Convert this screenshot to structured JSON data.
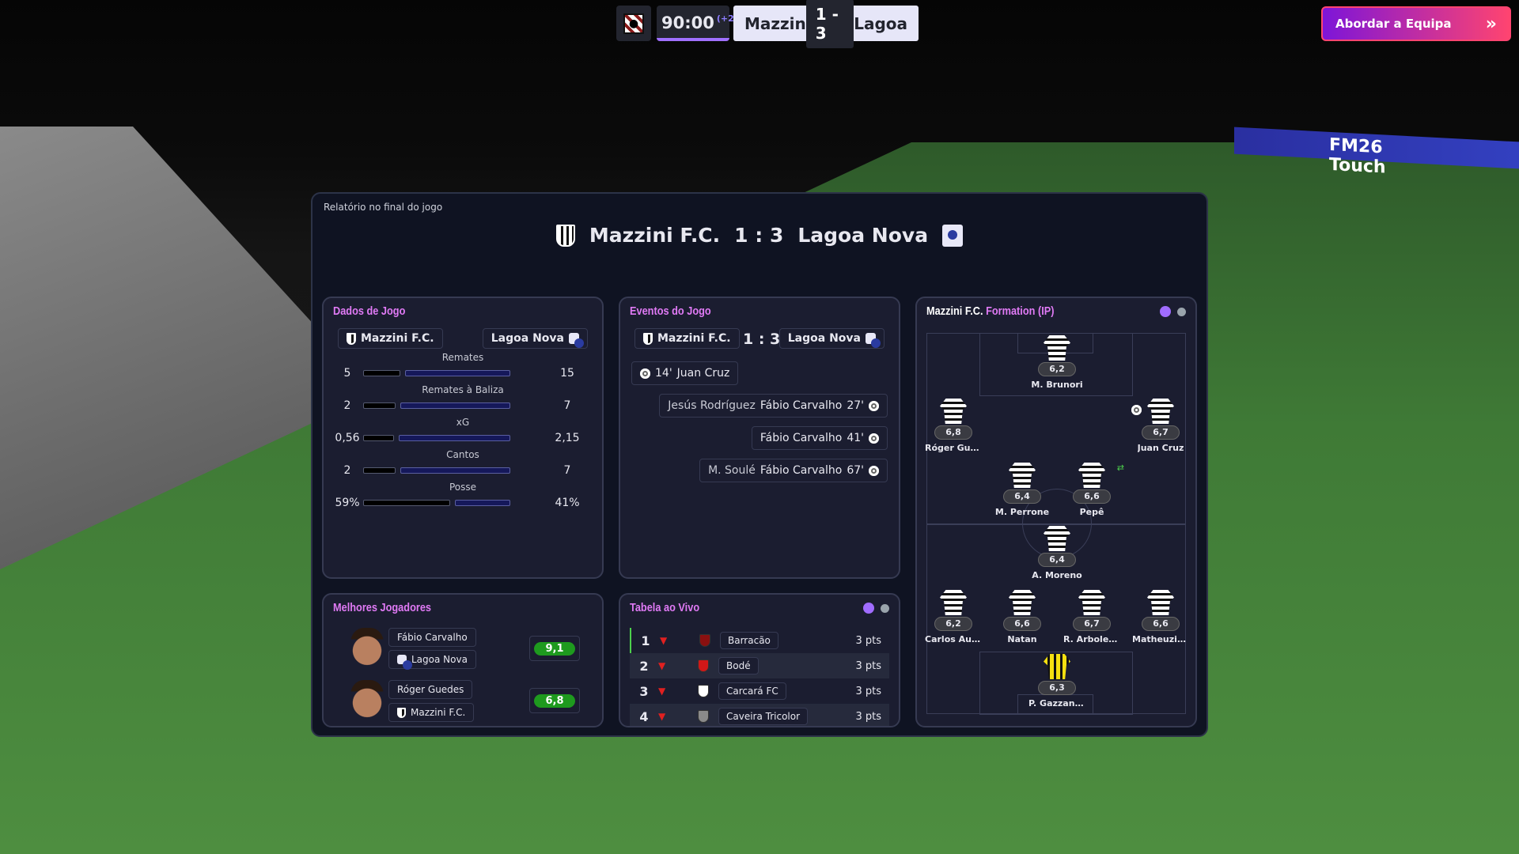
{
  "topbar": {
    "time": "90:00",
    "added_time": "(+2)",
    "home_short": "Mazzin",
    "score": "1 - 3",
    "away_short": "Lagoa",
    "approach_button": "Abordar a Equipa",
    "approach_icon": "double-chevron-right-icon"
  },
  "background": {
    "board_text": "FM26 Touch"
  },
  "report": {
    "label": "Relatório no final do jogo",
    "home": "Mazzini F.C.",
    "score": "1 : 3",
    "away": "Lagoa Nova"
  },
  "match_data": {
    "title": "Dados de Jogo",
    "home": "Mazzini F.C.",
    "away": "Lagoa Nova",
    "stats": [
      {
        "label": "Remates",
        "home": "5",
        "away": "15",
        "home_share": 25
      },
      {
        "label": "Remates à Baliza",
        "home": "2",
        "away": "7",
        "home_share": 22
      },
      {
        "label": "xG",
        "home": "0,56",
        "away": "2,15",
        "home_share": 21
      },
      {
        "label": "Cantos",
        "home": "2",
        "away": "7",
        "home_share": 22
      },
      {
        "label": "Posse",
        "home": "59%",
        "away": "41%",
        "home_share": 59
      }
    ]
  },
  "events": {
    "title": "Eventos do Jogo",
    "home": "Mazzini F.C.",
    "score": "1 : 3",
    "away": "Lagoa Nova",
    "home_events": [
      {
        "minute": "14'",
        "scorer": "Juan Cruz"
      }
    ],
    "away_events": [
      {
        "assist": "Jesús Rodríguez",
        "scorer": "Fábio Carvalho",
        "minute": "27'"
      },
      {
        "assist": "",
        "scorer": "Fábio Carvalho",
        "minute": "41'"
      },
      {
        "assist": "M. Soulé",
        "scorer": "Fábio Carvalho",
        "minute": "67'"
      }
    ]
  },
  "best_players": {
    "title": "Melhores Jogadores",
    "players": [
      {
        "name": "Fábio Carvalho",
        "team": "Lagoa Nova",
        "rating": "9,1"
      },
      {
        "name": "Róger Guedes",
        "team": "Mazzini F.C.",
        "rating": "6,8"
      }
    ]
  },
  "live_table": {
    "title": "Tabela ao Vivo",
    "rows": [
      {
        "pos": "1",
        "team": "Barracão",
        "pts": "3 pts",
        "crest_color": "#8a1010"
      },
      {
        "pos": "2",
        "team": "Bodé",
        "pts": "3 pts",
        "crest_color": "#d01818"
      },
      {
        "pos": "3",
        "team": "Carcará FC",
        "pts": "3 pts",
        "crest_color": "#ffffff"
      },
      {
        "pos": "4",
        "team": "Caveira Tricolor",
        "pts": "3 pts",
        "crest_color": "#8a8a8a"
      }
    ]
  },
  "formation": {
    "team": "Mazzini F.C.",
    "title": "Formation (IP)",
    "players": [
      {
        "name": "M. Brunori",
        "rating": "6,2"
      },
      {
        "name": "Róger Guedes",
        "rating": "6,8"
      },
      {
        "name": "Juan Cruz",
        "rating": "6,7",
        "goal": true
      },
      {
        "name": "M. Perrone",
        "rating": "6,4"
      },
      {
        "name": "Pepê",
        "rating": "6,6",
        "substituted": true
      },
      {
        "name": "A. Moreno",
        "rating": "6,4"
      },
      {
        "name": "Carlos Augusto",
        "rating": "6,2"
      },
      {
        "name": "Natan",
        "rating": "6,6"
      },
      {
        "name": "R. Arboleda",
        "rating": "6,7"
      },
      {
        "name": "Matheuzinho",
        "rating": "6,6"
      },
      {
        "name": "P. Gazzaniga",
        "rating": "6,3"
      }
    ]
  },
  "colors": {
    "accent": "#e07af5",
    "rating_green": "#1e9a1e",
    "away_bar": "#15185a"
  }
}
